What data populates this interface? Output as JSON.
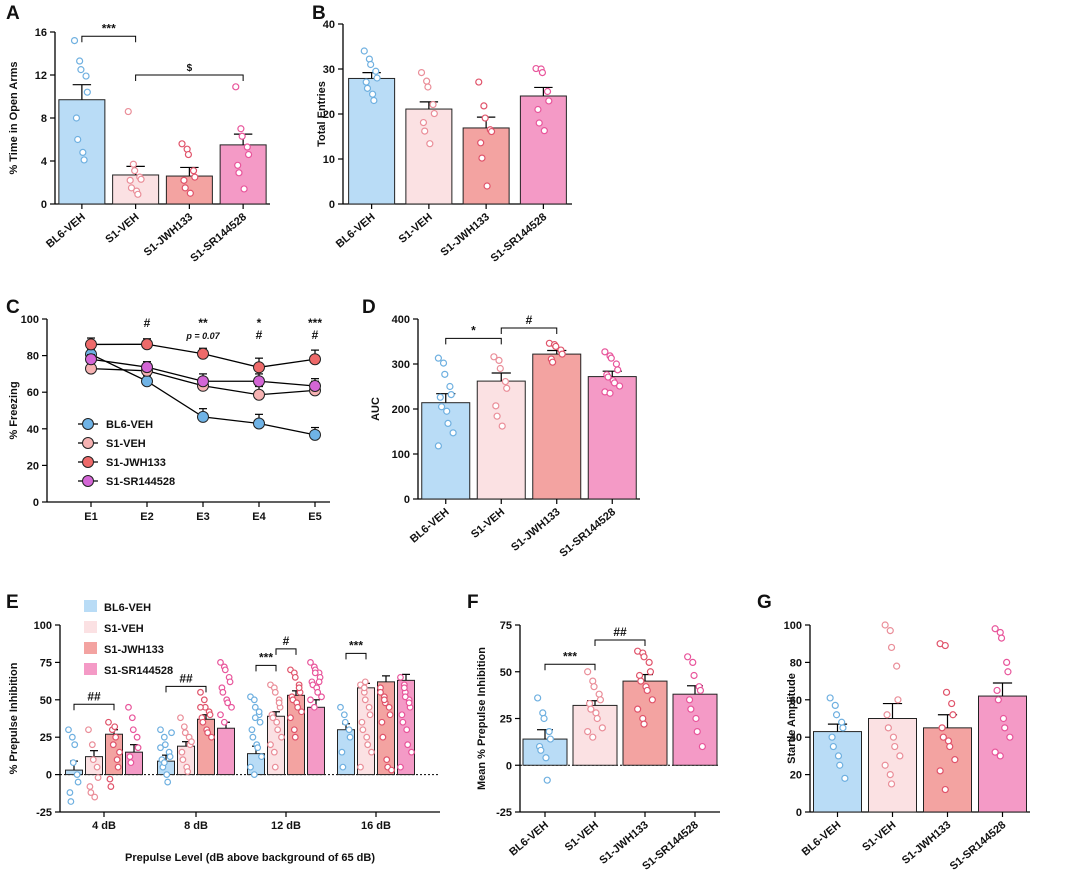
{
  "figure": {
    "panel_labels": [
      "A",
      "B",
      "C",
      "D",
      "E",
      "F",
      "G"
    ]
  },
  "colors": {
    "BL6-VEH": "#b9dcf6",
    "S1-VEH": "#fbe1e3",
    "S1-JWH133": "#f3a3a1",
    "S1-SR144528": "#f49ac6",
    "dot_BL6": "#6fb0e0",
    "dot_S1": "#ea8e99",
    "dot_JWH": "#e0536a",
    "dot_SR": "#e8559b",
    "line_BL6": "#6fb3e6",
    "line_S1": "#f6b2b2",
    "line_JWH": "#ee6a6a",
    "line_SR": "#d466d6"
  },
  "chart_data": [
    {
      "id": "A",
      "type": "bar",
      "categories": [
        "BL6-VEH",
        "S1-VEH",
        "S1-JWH133",
        "S1-SR144528"
      ],
      "values": [
        9.7,
        2.7,
        2.6,
        5.5
      ],
      "errors": [
        1.4,
        0.8,
        0.8,
        1.0
      ],
      "points": [
        [
          15.2,
          13.3,
          12.5,
          11.9,
          10.4,
          8.0,
          6.0,
          4.8,
          4.1
        ],
        [
          8.6,
          3.7,
          3.1,
          2.5,
          2.3,
          2.2,
          1.5,
          1.2,
          0.9
        ],
        [
          5.6,
          5.1,
          4.6,
          3.1,
          2.5,
          2.2,
          1.5,
          1.0
        ],
        [
          10.9,
          7.0,
          6.3,
          5.3,
          4.6,
          3.6,
          2.9,
          1.4
        ]
      ],
      "ylabel": "% Time in Open Arms",
      "ylim": [
        0,
        16
      ],
      "yticks": [
        0,
        4,
        8,
        12,
        16
      ],
      "annotations": [
        {
          "text": "***",
          "from": 0,
          "to": 1,
          "y": 15.6
        },
        {
          "text": "$",
          "from": 1,
          "to": 3,
          "y": 12.0
        }
      ]
    },
    {
      "id": "B",
      "type": "bar",
      "categories": [
        "BL6-VEH",
        "S1-VEH",
        "S1-JWH133",
        "S1-SR144528"
      ],
      "values": [
        27.9,
        21.1,
        16.9,
        24.0
      ],
      "errors": [
        1.3,
        1.6,
        2.4,
        1.9
      ],
      "points": [
        [
          34.0,
          32.2,
          31.0,
          29.5,
          28.0,
          27.1,
          25.7,
          24.4,
          23.0
        ],
        [
          29.2,
          27.3,
          26.0,
          22.1,
          20.1,
          18.1,
          16.2,
          13.4
        ],
        [
          27.1,
          21.8,
          19.1,
          16.5,
          16.1,
          13.6,
          10.2,
          4.0
        ],
        [
          30.1,
          30.0,
          29.2,
          25.0,
          22.9,
          21.0,
          18.0,
          16.3
        ]
      ],
      "ylabel": "Total Entries",
      "ylim": [
        0,
        40
      ],
      "yticks": [
        0,
        10,
        20,
        30,
        40
      ],
      "annotations": []
    },
    {
      "id": "C",
      "type": "line",
      "x": [
        "E1",
        "E2",
        "E3",
        "E4",
        "E5"
      ],
      "series": [
        {
          "name": "BL6-VEH",
          "values": [
            80.7,
            66.0,
            46.5,
            42.9,
            36.7
          ],
          "errors": [
            2.5,
            3.0,
            4.5,
            5.0,
            4.0
          ]
        },
        {
          "name": "S1-VEH",
          "values": [
            72.9,
            71.7,
            63.5,
            58.6,
            61.0
          ],
          "errors": [
            3.0,
            3.5,
            4.0,
            4.5,
            5.0
          ]
        },
        {
          "name": "S1-JWH133",
          "values": [
            86.1,
            86.2,
            81.0,
            73.6,
            78.0
          ],
          "errors": [
            3.5,
            3.0,
            3.0,
            5.0,
            5.0
          ]
        },
        {
          "name": "S1-SR144528",
          "values": [
            78.0,
            73.7,
            66.0,
            66.0,
            63.4
          ],
          "errors": [
            2.5,
            3.0,
            4.0,
            4.0,
            4.0
          ]
        }
      ],
      "ylabel": "% Freezing",
      "ylim": [
        0,
        100
      ],
      "yticks": [
        0,
        20,
        40,
        60,
        80,
        100
      ],
      "annotations": [
        {
          "x": 1,
          "lines": [
            "#"
          ]
        },
        {
          "x": 2,
          "lines": [
            "**",
            "p = 0.07"
          ]
        },
        {
          "x": 3,
          "lines": [
            "*",
            "#"
          ]
        },
        {
          "x": 4,
          "lines": [
            "***",
            "#"
          ]
        }
      ],
      "legend": "lower-left"
    },
    {
      "id": "D",
      "type": "bar",
      "categories": [
        "BL6-VEH",
        "S1-VEH",
        "S1-JWH133",
        "S1-SR144528"
      ],
      "values": [
        214,
        262,
        322,
        272
      ],
      "errors": [
        20,
        18,
        8,
        12
      ],
      "points": [
        [
          313,
          302,
          277,
          250,
          232,
          226,
          205,
          195,
          168,
          147,
          118
        ],
        [
          316,
          308,
          290,
          261,
          246,
          207,
          184,
          162
        ],
        [
          346,
          343,
          339,
          331,
          322,
          311,
          304
        ],
        [
          327,
          318,
          313,
          300,
          287,
          276,
          271,
          263,
          258,
          251,
          238,
          235
        ]
      ],
      "ylabel": "AUC",
      "ylim": [
        0,
        400
      ],
      "yticks": [
        0,
        100,
        200,
        300,
        400
      ],
      "annotations": [
        {
          "text": "*",
          "from": 0,
          "to": 1,
          "y": 357
        },
        {
          "text": "#",
          "from": 1,
          "to": 2,
          "y": 380
        }
      ]
    },
    {
      "id": "E",
      "type": "bar",
      "categories": [
        "4 dB",
        "8 dB",
        "12 dB",
        "16 dB"
      ],
      "series": [
        {
          "name": "BL6-VEH",
          "values": [
            3,
            9,
            14,
            30
          ],
          "errors": [
            6,
            4,
            5,
            4
          ]
        },
        {
          "name": "S1-VEH",
          "values": [
            12,
            19,
            39,
            58
          ],
          "errors": [
            4,
            3,
            3,
            3
          ]
        },
        {
          "name": "S1-JWH133",
          "values": [
            27,
            37,
            53,
            62
          ],
          "errors": [
            3,
            3,
            3,
            4
          ]
        },
        {
          "name": "S1-SR144528",
          "values": [
            15,
            31,
            45,
            63
          ],
          "errors": [
            5,
            4,
            5,
            4
          ]
        }
      ],
      "points": [
        [
          [
            30,
            25,
            8,
            0,
            -5,
            -12,
            -18,
            20
          ],
          [
            30,
            20,
            10,
            5,
            -2,
            -8,
            -12,
            -15
          ],
          [
            35,
            30,
            20,
            10,
            5,
            -3,
            -8,
            32,
            25,
            15
          ],
          [
            45,
            38,
            30,
            25,
            18,
            12,
            8
          ]
        ],
        [
          [
            30,
            25,
            20,
            15,
            12,
            10,
            5,
            0,
            -5,
            28,
            18,
            8
          ],
          [
            38,
            32,
            28,
            25,
            20,
            15,
            10,
            5,
            2,
            22
          ],
          [
            55,
            50,
            45,
            42,
            40,
            38,
            35,
            30,
            28,
            25,
            45
          ],
          [
            75,
            72,
            70,
            65,
            62,
            58,
            55,
            50,
            48,
            45,
            40,
            35
          ]
        ],
        [
          [
            52,
            50,
            45,
            40,
            35,
            30,
            25,
            20,
            18,
            12,
            5,
            0,
            38,
            42
          ],
          [
            60,
            58,
            55,
            50,
            45,
            40,
            38,
            35,
            30,
            25,
            20,
            15,
            5,
            48
          ],
          [
            70,
            68,
            65,
            60,
            55,
            52,
            50,
            48,
            45,
            42,
            38,
            30,
            25,
            58
          ],
          [
            75,
            72,
            70,
            68,
            65,
            62,
            60,
            58,
            55,
            52,
            50,
            45,
            68,
            62
          ]
        ],
        [
          [
            45,
            40,
            35,
            30,
            25,
            15,
            5
          ],
          [
            60,
            55,
            50,
            45,
            40,
            35,
            30,
            25,
            20,
            15,
            5,
            58,
            62
          ],
          [
            58,
            52,
            48,
            45,
            40,
            35,
            25,
            10,
            5,
            3,
            55,
            50
          ],
          [
            65,
            60,
            55,
            50,
            45,
            40,
            35,
            30,
            20,
            15,
            5,
            58,
            52,
            48
          ]
        ]
      ],
      "ylabel": "% Prepulse Inhibition",
      "xlabel": "Prepulse Level (dB above background of 65 dB)",
      "ylim": [
        -25,
        100
      ],
      "yticks": [
        -25,
        0,
        25,
        50,
        75,
        100
      ],
      "legend": "top-left",
      "annotations": [
        {
          "text": "##",
          "group": 0,
          "from": 0,
          "to": 2,
          "y": 47
        },
        {
          "text": "##",
          "group": 1,
          "from": 0,
          "to": 2,
          "y": 59
        },
        {
          "text": "***",
          "group": 2,
          "from": 0,
          "to": 1,
          "y": 73
        },
        {
          "text": "#",
          "group": 2,
          "from": 1,
          "to": 2,
          "y": 84
        },
        {
          "text": "***",
          "group": 3,
          "from": 0,
          "to": 1,
          "y": 81
        }
      ]
    },
    {
      "id": "F",
      "type": "bar",
      "categories": [
        "BL6-VEH",
        "S1-VEH",
        "S1-JWH133",
        "S1-SR144528"
      ],
      "values": [
        14,
        32,
        45,
        38
      ],
      "errors": [
        5,
        2.5,
        3.5,
        4.5
      ],
      "points": [
        [
          36,
          28,
          25,
          18,
          14,
          10,
          8,
          4,
          -8
        ],
        [
          50,
          45,
          42,
          38,
          35,
          33,
          30,
          28,
          25,
          20,
          18,
          15
        ],
        [
          61,
          60,
          58,
          55,
          50,
          48,
          45,
          42,
          40,
          35,
          30,
          25,
          22
        ],
        [
          58,
          55,
          48,
          42,
          40,
          35,
          30,
          25,
          18,
          10
        ]
      ],
      "ylabel": "Mean % Prepulse Inhibition",
      "ylim": [
        -25,
        75
      ],
      "yticks": [
        -25,
        0,
        25,
        50,
        75
      ],
      "annotations": [
        {
          "text": "***",
          "from": 0,
          "to": 1,
          "y": 54
        },
        {
          "text": "##",
          "from": 1,
          "to": 2,
          "y": 67
        }
      ]
    },
    {
      "id": "G",
      "type": "bar",
      "categories": [
        "BL6-VEH",
        "S1-VEH",
        "S1-JWH133",
        "S1-SR144528"
      ],
      "values": [
        43,
        50,
        45,
        62
      ],
      "errors": [
        4,
        8,
        7,
        7
      ],
      "points": [
        [
          61,
          57,
          52,
          48,
          45,
          40,
          35,
          30,
          25,
          18
        ],
        [
          100,
          97,
          88,
          78,
          60,
          52,
          45,
          40,
          35,
          30,
          25,
          20,
          15
        ],
        [
          90,
          89,
          64,
          58,
          52,
          45,
          40,
          38,
          35,
          28,
          22,
          12
        ],
        [
          98,
          96,
          93,
          80,
          75,
          65,
          60,
          50,
          45,
          40,
          32,
          30
        ]
      ],
      "ylabel": "Startle Amplitude",
      "ylim": [
        0,
        100
      ],
      "yticks": [
        0,
        20,
        40,
        60,
        80,
        100
      ],
      "annotations": []
    }
  ]
}
